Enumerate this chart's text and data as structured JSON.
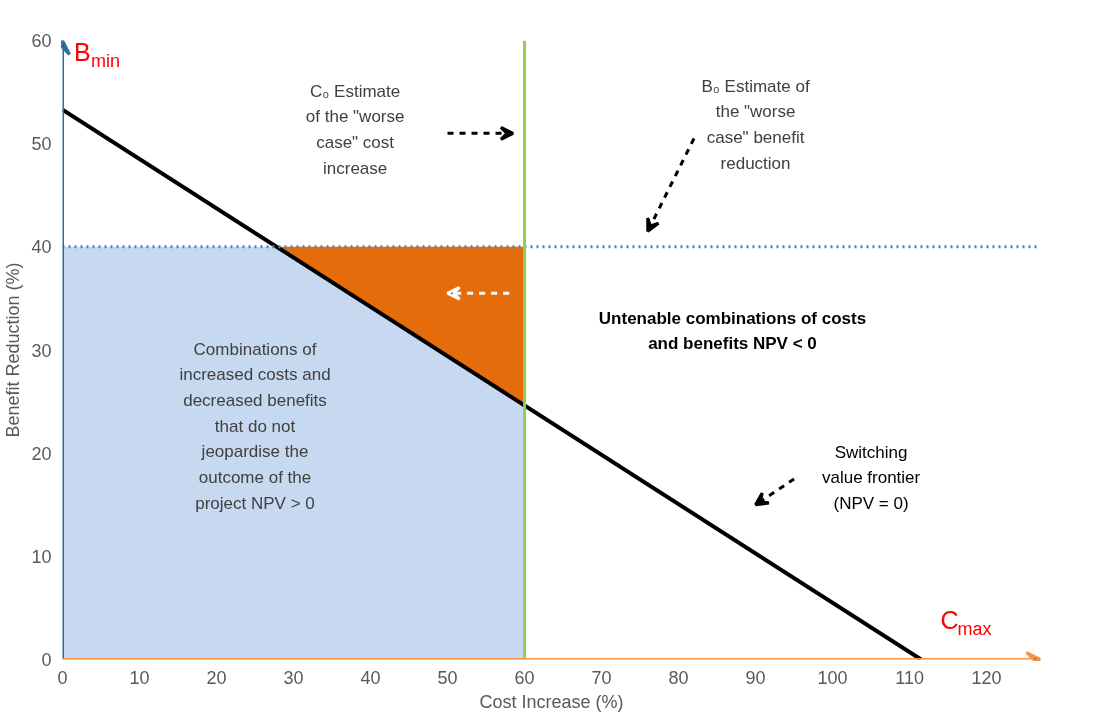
{
  "chart_data": {
    "type": "line",
    "xlabel": "Cost Increase (%)",
    "ylabel": "Benefit Reduction (%)",
    "xlim": [
      0,
      127
    ],
    "ylim": [
      0,
      60
    ],
    "xticks": [
      0,
      10,
      20,
      30,
      40,
      50,
      60,
      70,
      80,
      90,
      100,
      110,
      120
    ],
    "yticks": [
      0,
      10,
      20,
      30,
      40,
      50,
      60
    ],
    "grid": false,
    "stacked": true,
    "series": [
      {
        "type": "area",
        "color": "#c6d9f0",
        "x": [
          0,
          27.8,
          60
        ],
        "values": [
          40,
          40,
          24.6
        ]
      },
      {
        "type": "area",
        "color": "#e46c0a",
        "x": [
          0,
          27.8,
          60
        ],
        "values": [
          0,
          0,
          15.4
        ]
      },
      {
        "color": "#000000",
        "x": [
          0,
          111.5
        ],
        "values": [
          53.3,
          0
        ]
      }
    ],
    "ref_lines": [
      {
        "axis": "y",
        "value": 40,
        "color": "#4f81bd",
        "line_style": "dotted"
      },
      {
        "axis": "x",
        "value": 60,
        "color": "#92d050",
        "line_style": "solid"
      }
    ],
    "annotations": [
      "B$_{min}$",
      "C$_{max}$",
      "C₀ Estimate\nof the \"worse\ncase\" cost\nincrease",
      "B₀ Estimate of\nthe \"worse\ncase\" benefit\nreduction",
      "Untenable combinations of costs\nand benefits NPV < 0",
      "Combinations of\nincreased costs and\ndecreased benefits\nthat do not\njeopardise the\noutcome of the\nproject NPV > 0",
      "Switching\nvalue frontier\n(NPV = 0)"
    ]
  }
}
